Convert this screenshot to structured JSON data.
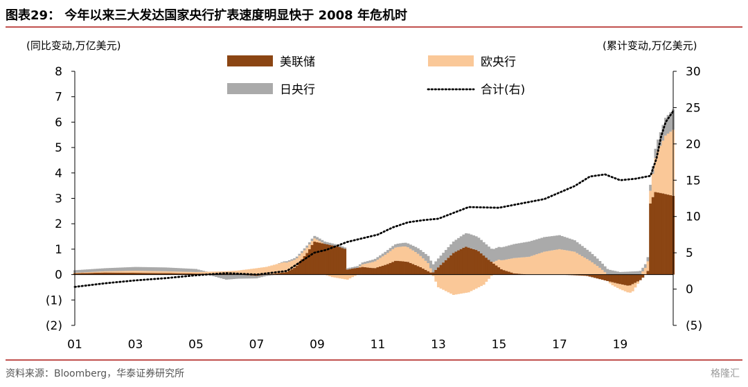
{
  "header": {
    "title": "图表29： 今年以来三大发达国家央行扩表速度明显快于 2008 年危机时",
    "left_unit": "(同比变动,万亿美元)",
    "right_unit": "(累计变动,万亿美元)"
  },
  "footer": {
    "source": "资料来源：Bloomberg，华泰证券研究所",
    "watermark": "格隆汇"
  },
  "chart_data": {
    "type": "bar",
    "title": "今年以来三大发达国家央行扩表速度明显快于 2008 年危机时",
    "x_ticks": [
      "01",
      "03",
      "05",
      "07",
      "09",
      "11",
      "13",
      "15",
      "17",
      "19"
    ],
    "x_tick_years": [
      2001,
      2003,
      2005,
      2007,
      2009,
      2011,
      2013,
      2015,
      2017,
      2019
    ],
    "x_range": [
      2001,
      2020.75
    ],
    "left_axis": {
      "label": "(同比变动,万亿美元)",
      "ylim": [
        -2,
        8
      ],
      "ticks": [
        8,
        7,
        6,
        5,
        4,
        3,
        2,
        1,
        0,
        -1,
        -2
      ],
      "tick_labels": [
        "8",
        "7",
        "6",
        "5",
        "4",
        "3",
        "2",
        "1",
        "0",
        "(1)",
        "(2)"
      ]
    },
    "right_axis": {
      "label": "(累计变动,万亿美元)",
      "ylim": [
        -5,
        30
      ],
      "ticks": [
        30,
        25,
        20,
        15,
        10,
        5,
        0,
        -5
      ],
      "tick_labels": [
        "30",
        "25",
        "20",
        "15",
        "10",
        "5",
        "0",
        "(5)"
      ]
    },
    "grid": false,
    "legend_placement": "top",
    "series": [
      {
        "name": "美联储",
        "kind": "bar",
        "color": "#8b4513",
        "points": [
          [
            2001,
            0.05
          ],
          [
            2002,
            0.08
          ],
          [
            2003,
            0.07
          ],
          [
            2004,
            0.06
          ],
          [
            2005,
            0.04
          ],
          [
            2006,
            0.03
          ],
          [
            2007,
            -0.05
          ],
          [
            2008.0,
            0.1
          ],
          [
            2008.3,
            0.3
          ],
          [
            2008.7,
            0.9
          ],
          [
            2008.9,
            1.3
          ],
          [
            2009.3,
            1.2
          ],
          [
            2009.7,
            1.1
          ],
          [
            2009.95,
            1.0
          ],
          [
            2010.0,
            0.2
          ],
          [
            2010.5,
            0.3
          ],
          [
            2010.9,
            0.25
          ],
          [
            2011.3,
            0.4
          ],
          [
            2011.6,
            0.55
          ],
          [
            2012.0,
            0.5
          ],
          [
            2012.4,
            0.3
          ],
          [
            2012.8,
            0.05
          ],
          [
            2013.1,
            0.4
          ],
          [
            2013.5,
            0.85
          ],
          [
            2013.9,
            1.1
          ],
          [
            2014.3,
            0.95
          ],
          [
            2014.7,
            0.55
          ],
          [
            2015.1,
            0.2
          ],
          [
            2015.5,
            0.05
          ],
          [
            2016,
            0.0
          ],
          [
            2017,
            0.0
          ],
          [
            2017.9,
            -0.05
          ],
          [
            2018.4,
            -0.2
          ],
          [
            2018.9,
            -0.35
          ],
          [
            2019.3,
            -0.45
          ],
          [
            2019.7,
            -0.2
          ],
          [
            2019.95,
            0.2
          ],
          [
            2020.0,
            2.8
          ],
          [
            2020.15,
            3.25
          ],
          [
            2020.4,
            3.2
          ],
          [
            2020.75,
            3.1
          ]
        ]
      },
      {
        "name": "欧央行",
        "kind": "bar",
        "color": "#fac898",
        "points": [
          [
            2001,
            0.02
          ],
          [
            2002,
            0.05
          ],
          [
            2003,
            0.08
          ],
          [
            2004,
            0.07
          ],
          [
            2005,
            0.06
          ],
          [
            2006,
            0.1
          ],
          [
            2007,
            0.25
          ],
          [
            2007.9,
            0.4
          ],
          [
            2008.3,
            0.3
          ],
          [
            2008.7,
            0.2
          ],
          [
            2009,
            0.1
          ],
          [
            2009.5,
            -0.1
          ],
          [
            2010,
            -0.2
          ],
          [
            2010.5,
            0.1
          ],
          [
            2011.0,
            0.3
          ],
          [
            2011.5,
            0.5
          ],
          [
            2011.9,
            0.6
          ],
          [
            2012.3,
            0.5
          ],
          [
            2012.7,
            0.3
          ],
          [
            2013.0,
            -0.5
          ],
          [
            2013.5,
            -0.8
          ],
          [
            2014.0,
            -0.7
          ],
          [
            2014.5,
            -0.4
          ],
          [
            2015.0,
            0.3
          ],
          [
            2015.5,
            0.6
          ],
          [
            2016.0,
            0.7
          ],
          [
            2016.5,
            0.9
          ],
          [
            2017.0,
            1.0
          ],
          [
            2017.5,
            0.9
          ],
          [
            2018.0,
            0.55
          ],
          [
            2018.3,
            0.3
          ],
          [
            2018.7,
            -0.1
          ],
          [
            2019.0,
            -0.2
          ],
          [
            2019.4,
            -0.3
          ],
          [
            2019.7,
            0.05
          ],
          [
            2020.0,
            0.5
          ],
          [
            2020.2,
            1.5
          ],
          [
            2020.5,
            2.3
          ],
          [
            2020.75,
            2.6
          ]
        ]
      },
      {
        "name": "日央行",
        "kind": "bar",
        "color": "#aaaaaa",
        "points": [
          [
            2001,
            0.1
          ],
          [
            2002,
            0.12
          ],
          [
            2003,
            0.15
          ],
          [
            2004,
            0.15
          ],
          [
            2005,
            0.12
          ],
          [
            2006,
            -0.2
          ],
          [
            2007,
            -0.1
          ],
          [
            2008,
            0.05
          ],
          [
            2009,
            0.1
          ],
          [
            2010,
            0.05
          ],
          [
            2011,
            0.1
          ],
          [
            2012,
            0.15
          ],
          [
            2013,
            0.35
          ],
          [
            2014,
            0.55
          ],
          [
            2015,
            0.5
          ],
          [
            2016,
            0.6
          ],
          [
            2017,
            0.55
          ],
          [
            2018,
            0.35
          ],
          [
            2019,
            0.1
          ],
          [
            2019.9,
            0.15
          ],
          [
            2020.2,
            0.4
          ],
          [
            2020.5,
            0.7
          ],
          [
            2020.75,
            0.8
          ]
        ]
      },
      {
        "name": "合计(右)",
        "kind": "line",
        "axis": "right",
        "style": "dotted",
        "color": "#000000",
        "points": [
          [
            2001,
            0.3
          ],
          [
            2002,
            0.8
          ],
          [
            2003,
            1.2
          ],
          [
            2004,
            1.5
          ],
          [
            2005,
            1.9
          ],
          [
            2006,
            2.2
          ],
          [
            2007,
            2.0
          ],
          [
            2008,
            2.5
          ],
          [
            2008.9,
            5.0
          ],
          [
            2009.3,
            5.4
          ],
          [
            2010,
            6.5
          ],
          [
            2011,
            7.5
          ],
          [
            2011.5,
            8.5
          ],
          [
            2012,
            9.2
          ],
          [
            2012.5,
            9.5
          ],
          [
            2013,
            9.7
          ],
          [
            2013.5,
            10.5
          ],
          [
            2014,
            11.3
          ],
          [
            2015,
            11.2
          ],
          [
            2016,
            12.0
          ],
          [
            2016.5,
            12.4
          ],
          [
            2017,
            13.3
          ],
          [
            2017.5,
            14.2
          ],
          [
            2018,
            15.5
          ],
          [
            2018.5,
            15.8
          ],
          [
            2019,
            15.0
          ],
          [
            2019.5,
            15.2
          ],
          [
            2020.0,
            15.6
          ],
          [
            2020.2,
            18.0
          ],
          [
            2020.35,
            21.0
          ],
          [
            2020.5,
            23.0
          ],
          [
            2020.75,
            24.5
          ]
        ]
      }
    ]
  }
}
